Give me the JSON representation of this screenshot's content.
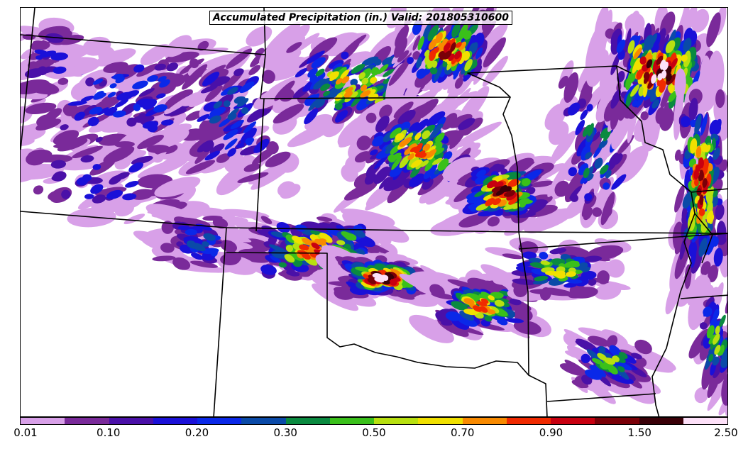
{
  "title": "Accumulated Precipitation (in.) Valid: 201805310600",
  "colorbar": {
    "colors": [
      "#d8a0e8",
      "#7a2a9a",
      "#4a10a8",
      "#1a10d8",
      "#0a28e8",
      "#0a4aa8",
      "#0a8a40",
      "#3ac01a",
      "#b8e010",
      "#f0e000",
      "#f88a00",
      "#f02a00",
      "#c80010",
      "#7a0008",
      "#3a0008",
      "#fde0f8"
    ],
    "ticks": [
      "0.01",
      "0.10",
      "0.20",
      "0.30",
      "0.50",
      "0.70",
      "0.90",
      "1.50",
      "2.50"
    ]
  }
}
